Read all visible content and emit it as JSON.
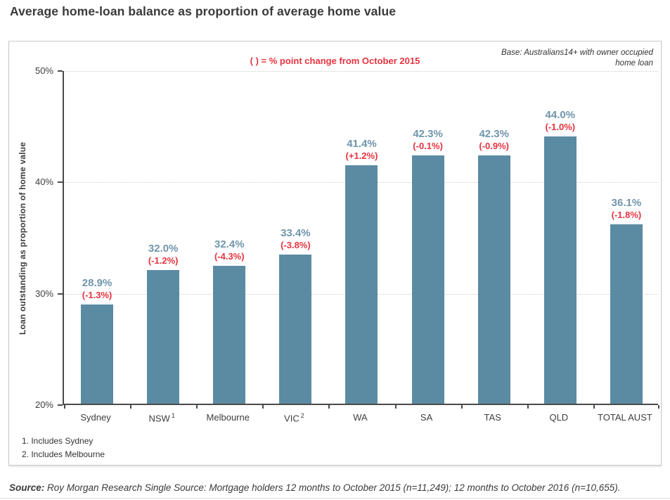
{
  "page": {
    "title": "Average home-loan balance as proportion of average home value"
  },
  "chart": {
    "legend_note": "( ) = % point change from October 2015",
    "base_note_line1": "Base: Australians14+ with owner occupied",
    "base_note_line2": "home loan",
    "y_axis_title": "Loan outstanding as proportion of home value",
    "footnote_1": "1. Includes Sydney",
    "footnote_2": "2. Includes Melbourne"
  },
  "source": {
    "label": "Source:",
    "text": " Roy Morgan Research Single Source: Mortgage holders 12 months to October 2015 (n=11,249); 12 months to October 2016 (n=10,655)."
  },
  "colors": {
    "bar": "#5b8ba3",
    "value_label": "#6f95aa",
    "change_label": "#e8333f",
    "note_red": "#e8333f",
    "axis_text": "#3d3d3d"
  },
  "chart_data": {
    "type": "bar",
    "title": "Average home-loan balance as proportion of average home value",
    "xlabel": "",
    "ylabel": "Loan outstanding as proportion of home value",
    "ylim": [
      20,
      50
    ],
    "yticks": [
      20,
      30,
      40,
      50
    ],
    "ytick_labels": [
      "20%",
      "30%",
      "40%",
      "50%"
    ],
    "grid": "horizontal dotted gridlines at 30%, 40%, 50%",
    "legend_position": "none",
    "annotation": "( ) = % point change from October 2015",
    "base_note": "Base: Australians14+ with owner occupied home loan",
    "categories": [
      {
        "label": "Sydney",
        "sup": ""
      },
      {
        "label": "NSW",
        "sup": "1"
      },
      {
        "label": "Melbourne",
        "sup": ""
      },
      {
        "label": "VIC",
        "sup": "2"
      },
      {
        "label": "WA",
        "sup": ""
      },
      {
        "label": "SA",
        "sup": ""
      },
      {
        "label": "TAS",
        "sup": ""
      },
      {
        "label": "QLD",
        "sup": ""
      },
      {
        "label": "TOTAL AUST",
        "sup": ""
      }
    ],
    "series": [
      {
        "name": "Loan outstanding as proportion of home value, October 2016",
        "values": [
          28.9,
          32.0,
          32.4,
          33.4,
          41.4,
          42.3,
          42.3,
          44.0,
          36.1
        ],
        "value_labels": [
          "28.9%",
          "32.0%",
          "32.4%",
          "33.4%",
          "41.4%",
          "42.3%",
          "42.3%",
          "44.0%",
          "36.1%"
        ],
        "change_labels": [
          "(-1.3%)",
          "(-1.2%)",
          "(-4.3%)",
          "(-3.8%)",
          "(+1.2%)",
          "(-0.1%)",
          "(-0.9%)",
          "(-1.0%)",
          "(-1.8%)"
        ]
      }
    ],
    "footnotes": [
      "1. Includes Sydney",
      "2. Includes Melbourne"
    ]
  }
}
